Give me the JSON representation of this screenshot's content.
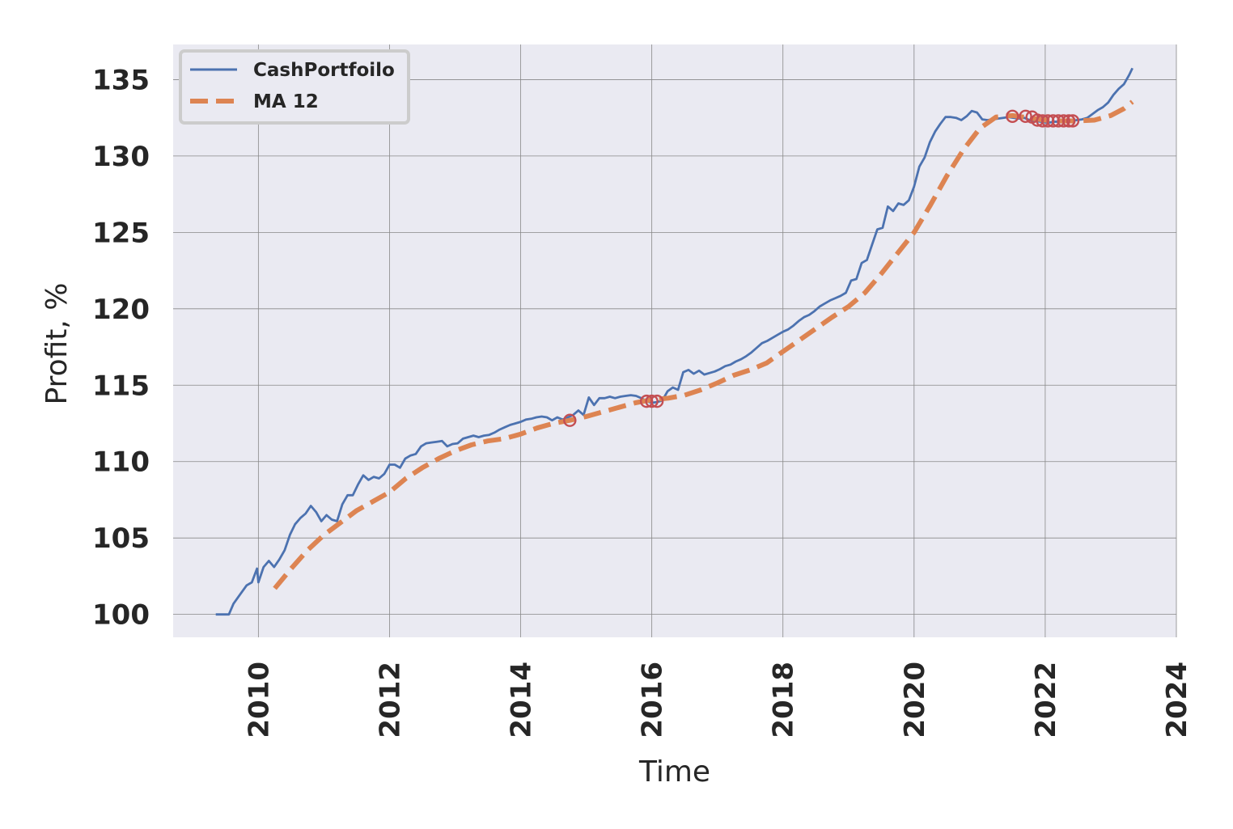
{
  "chart_data": {
    "type": "line",
    "title": "",
    "xlabel": "Time",
    "ylabel": "Profit, %",
    "xlim": [
      2008.7,
      2024.0
    ],
    "ylim": [
      98.5,
      137.3
    ],
    "x_ticks": [
      2010,
      2012,
      2014,
      2016,
      2018,
      2020,
      2022,
      2024
    ],
    "x_tick_labels": [
      "2010",
      "2012",
      "2014",
      "2016",
      "2018",
      "2020",
      "2022",
      "2024"
    ],
    "y_ticks": [
      100,
      105,
      110,
      115,
      120,
      125,
      130,
      135
    ],
    "y_tick_labels": [
      "100",
      "105",
      "110",
      "115",
      "120",
      "125",
      "130",
      "135"
    ],
    "grid": true,
    "legend_position": "top-left",
    "series": [
      {
        "name": "CashPortfoilo",
        "color": "#4c72b0",
        "style": "solid",
        "points": [
          [
            2009.35,
            100.0
          ],
          [
            2009.55,
            100.0
          ],
          [
            2009.62,
            100.7
          ],
          [
            2009.72,
            101.3
          ],
          [
            2009.82,
            101.9
          ],
          [
            2009.9,
            102.1
          ],
          [
            2009.98,
            103.0
          ],
          [
            2010.0,
            102.1
          ],
          [
            2010.08,
            103.1
          ],
          [
            2010.16,
            103.5
          ],
          [
            2010.24,
            103.1
          ],
          [
            2010.32,
            103.6
          ],
          [
            2010.4,
            104.2
          ],
          [
            2010.48,
            105.2
          ],
          [
            2010.56,
            105.9
          ],
          [
            2010.64,
            106.3
          ],
          [
            2010.72,
            106.6
          ],
          [
            2010.8,
            107.1
          ],
          [
            2010.88,
            106.7
          ],
          [
            2010.96,
            106.1
          ],
          [
            2011.04,
            106.5
          ],
          [
            2011.12,
            106.2
          ],
          [
            2011.2,
            106.1
          ],
          [
            2011.28,
            107.2
          ],
          [
            2011.36,
            107.8
          ],
          [
            2011.44,
            107.8
          ],
          [
            2011.52,
            108.5
          ],
          [
            2011.6,
            109.1
          ],
          [
            2011.68,
            108.8
          ],
          [
            2011.76,
            109.0
          ],
          [
            2011.84,
            108.9
          ],
          [
            2011.92,
            109.2
          ],
          [
            2012.0,
            109.8
          ],
          [
            2012.08,
            109.8
          ],
          [
            2012.16,
            109.6
          ],
          [
            2012.24,
            110.2
          ],
          [
            2012.32,
            110.4
          ],
          [
            2012.4,
            110.5
          ],
          [
            2012.48,
            111.0
          ],
          [
            2012.56,
            111.2
          ],
          [
            2012.64,
            111.25
          ],
          [
            2012.72,
            111.3
          ],
          [
            2012.8,
            111.35
          ],
          [
            2012.88,
            111.0
          ],
          [
            2012.96,
            111.15
          ],
          [
            2013.04,
            111.2
          ],
          [
            2013.12,
            111.5
          ],
          [
            2013.2,
            111.6
          ],
          [
            2013.28,
            111.7
          ],
          [
            2013.36,
            111.6
          ],
          [
            2013.44,
            111.7
          ],
          [
            2013.52,
            111.75
          ],
          [
            2013.6,
            111.9
          ],
          [
            2013.68,
            112.1
          ],
          [
            2013.76,
            112.25
          ],
          [
            2013.84,
            112.4
          ],
          [
            2013.92,
            112.5
          ],
          [
            2014.0,
            112.6
          ],
          [
            2014.08,
            112.75
          ],
          [
            2014.16,
            112.8
          ],
          [
            2014.24,
            112.9
          ],
          [
            2014.32,
            112.95
          ],
          [
            2014.4,
            112.9
          ],
          [
            2014.48,
            112.7
          ],
          [
            2014.56,
            112.9
          ],
          [
            2014.64,
            112.75
          ],
          [
            2014.72,
            112.9
          ],
          [
            2014.8,
            113.05
          ],
          [
            2014.88,
            113.35
          ],
          [
            2014.96,
            113.05
          ],
          [
            2015.04,
            114.2
          ],
          [
            2015.12,
            113.7
          ],
          [
            2015.2,
            114.15
          ],
          [
            2015.28,
            114.15
          ],
          [
            2015.36,
            114.25
          ],
          [
            2015.44,
            114.15
          ],
          [
            2015.52,
            114.25
          ],
          [
            2015.6,
            114.3
          ],
          [
            2015.68,
            114.35
          ],
          [
            2015.76,
            114.3
          ],
          [
            2015.84,
            114.15
          ],
          [
            2015.92,
            113.95
          ],
          [
            2016.0,
            113.85
          ],
          [
            2016.08,
            113.9
          ],
          [
            2016.16,
            114.0
          ],
          [
            2016.24,
            114.6
          ],
          [
            2016.32,
            114.85
          ],
          [
            2016.4,
            114.7
          ],
          [
            2016.48,
            115.85
          ],
          [
            2016.56,
            116.0
          ],
          [
            2016.64,
            115.75
          ],
          [
            2016.72,
            115.95
          ],
          [
            2016.8,
            115.7
          ],
          [
            2016.88,
            115.8
          ],
          [
            2016.96,
            115.9
          ],
          [
            2017.04,
            116.05
          ],
          [
            2017.12,
            116.25
          ],
          [
            2017.2,
            116.35
          ],
          [
            2017.28,
            116.55
          ],
          [
            2017.36,
            116.7
          ],
          [
            2017.44,
            116.9
          ],
          [
            2017.52,
            117.15
          ],
          [
            2017.6,
            117.45
          ],
          [
            2017.68,
            117.75
          ],
          [
            2017.76,
            117.9
          ],
          [
            2017.84,
            118.1
          ],
          [
            2017.92,
            118.3
          ],
          [
            2018.0,
            118.5
          ],
          [
            2018.08,
            118.65
          ],
          [
            2018.16,
            118.9
          ],
          [
            2018.24,
            119.2
          ],
          [
            2018.32,
            119.45
          ],
          [
            2018.4,
            119.6
          ],
          [
            2018.48,
            119.85
          ],
          [
            2018.56,
            120.15
          ],
          [
            2018.64,
            120.35
          ],
          [
            2018.72,
            120.55
          ],
          [
            2018.8,
            120.7
          ],
          [
            2018.88,
            120.85
          ],
          [
            2018.96,
            121.05
          ],
          [
            2019.04,
            121.85
          ],
          [
            2019.12,
            121.95
          ],
          [
            2019.2,
            123.0
          ],
          [
            2019.28,
            123.2
          ],
          [
            2019.36,
            124.2
          ],
          [
            2019.44,
            125.2
          ],
          [
            2019.52,
            125.3
          ],
          [
            2019.6,
            126.7
          ],
          [
            2019.68,
            126.4
          ],
          [
            2019.76,
            126.9
          ],
          [
            2019.84,
            126.8
          ],
          [
            2019.92,
            127.1
          ],
          [
            2020.0,
            128.0
          ],
          [
            2020.08,
            129.3
          ],
          [
            2020.16,
            129.9
          ],
          [
            2020.24,
            130.9
          ],
          [
            2020.32,
            131.6
          ],
          [
            2020.4,
            132.1
          ],
          [
            2020.48,
            132.55
          ],
          [
            2020.56,
            132.55
          ],
          [
            2020.64,
            132.5
          ],
          [
            2020.72,
            132.35
          ],
          [
            2020.8,
            132.6
          ],
          [
            2020.88,
            132.95
          ],
          [
            2020.96,
            132.85
          ],
          [
            2021.04,
            132.4
          ],
          [
            2021.12,
            132.35
          ],
          [
            2021.2,
            132.4
          ],
          [
            2021.28,
            132.45
          ],
          [
            2021.36,
            132.5
          ],
          [
            2021.44,
            132.55
          ],
          [
            2021.52,
            132.5
          ],
          [
            2021.6,
            132.45
          ],
          [
            2021.68,
            132.5
          ],
          [
            2021.76,
            132.35
          ],
          [
            2021.84,
            132.3
          ],
          [
            2021.92,
            132.25
          ],
          [
            2022.0,
            132.2
          ],
          [
            2022.08,
            132.2
          ],
          [
            2022.16,
            132.25
          ],
          [
            2022.24,
            132.2
          ],
          [
            2022.32,
            132.3
          ],
          [
            2022.4,
            132.3
          ],
          [
            2022.48,
            132.35
          ],
          [
            2022.56,
            132.4
          ],
          [
            2022.64,
            132.5
          ],
          [
            2022.72,
            132.75
          ],
          [
            2022.8,
            133.0
          ],
          [
            2022.88,
            133.2
          ],
          [
            2022.96,
            133.5
          ],
          [
            2023.04,
            134.0
          ],
          [
            2023.12,
            134.4
          ],
          [
            2023.2,
            134.7
          ],
          [
            2023.28,
            135.3
          ],
          [
            2023.33,
            135.75
          ]
        ]
      },
      {
        "name": "MA 12",
        "color": "#dd8452",
        "style": "dashed",
        "points": [
          [
            2010.25,
            101.7
          ],
          [
            2010.5,
            103.0
          ],
          [
            2010.75,
            104.2
          ],
          [
            2011.0,
            105.2
          ],
          [
            2011.25,
            106.0
          ],
          [
            2011.5,
            106.8
          ],
          [
            2011.75,
            107.4
          ],
          [
            2012.0,
            108.0
          ],
          [
            2012.25,
            108.9
          ],
          [
            2012.5,
            109.6
          ],
          [
            2012.75,
            110.2
          ],
          [
            2013.0,
            110.7
          ],
          [
            2013.25,
            111.1
          ],
          [
            2013.5,
            111.35
          ],
          [
            2013.75,
            111.5
          ],
          [
            2014.0,
            111.8
          ],
          [
            2014.25,
            112.2
          ],
          [
            2014.5,
            112.5
          ],
          [
            2014.75,
            112.7
          ],
          [
            2015.0,
            112.95
          ],
          [
            2015.25,
            113.25
          ],
          [
            2015.5,
            113.55
          ],
          [
            2015.75,
            113.85
          ],
          [
            2016.0,
            114.05
          ],
          [
            2016.25,
            114.15
          ],
          [
            2016.5,
            114.35
          ],
          [
            2016.75,
            114.7
          ],
          [
            2017.0,
            115.15
          ],
          [
            2017.25,
            115.65
          ],
          [
            2017.5,
            116.0
          ],
          [
            2017.75,
            116.45
          ],
          [
            2018.0,
            117.2
          ],
          [
            2018.25,
            117.95
          ],
          [
            2018.5,
            118.7
          ],
          [
            2018.75,
            119.45
          ],
          [
            2019.0,
            120.15
          ],
          [
            2019.25,
            121.05
          ],
          [
            2019.5,
            122.3
          ],
          [
            2019.75,
            123.65
          ],
          [
            2020.0,
            125.0
          ],
          [
            2020.25,
            126.8
          ],
          [
            2020.5,
            128.7
          ],
          [
            2020.75,
            130.4
          ],
          [
            2021.0,
            131.8
          ],
          [
            2021.25,
            132.55
          ],
          [
            2021.5,
            132.65
          ],
          [
            2021.75,
            132.5
          ],
          [
            2022.0,
            132.35
          ],
          [
            2022.25,
            132.3
          ],
          [
            2022.5,
            132.3
          ],
          [
            2022.75,
            132.35
          ],
          [
            2023.0,
            132.65
          ],
          [
            2023.2,
            133.1
          ],
          [
            2023.33,
            133.55
          ]
        ]
      }
    ],
    "markers": {
      "color": "#c44e52",
      "shape": "hollow-circle",
      "points": [
        [
          2014.75,
          112.7
        ],
        [
          2015.92,
          113.95
        ],
        [
          2016.0,
          113.95
        ],
        [
          2016.08,
          113.95
        ],
        [
          2021.5,
          132.6
        ],
        [
          2021.7,
          132.6
        ],
        [
          2021.8,
          132.55
        ],
        [
          2021.88,
          132.35
        ],
        [
          2021.96,
          132.3
        ],
        [
          2022.04,
          132.3
        ],
        [
          2022.12,
          132.3
        ],
        [
          2022.2,
          132.3
        ],
        [
          2022.28,
          132.3
        ],
        [
          2022.36,
          132.3
        ],
        [
          2022.42,
          132.3
        ]
      ]
    }
  }
}
